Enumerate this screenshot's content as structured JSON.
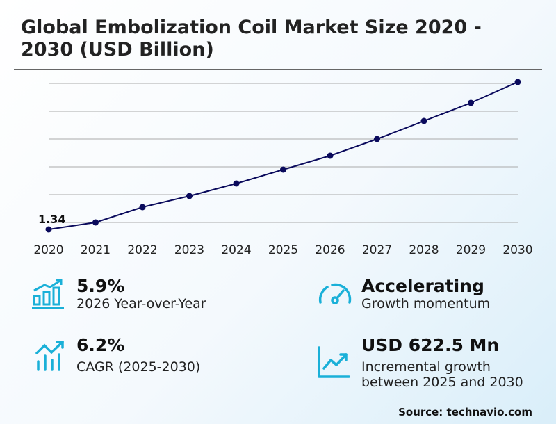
{
  "title": "Global Embolization Coil Market Size 2020 - 2030 (USD Billion)",
  "chart_data": {
    "type": "line",
    "title": "Global Embolization Coil Market Size 2020 - 2030 (USD Billion)",
    "categories": [
      "2020",
      "2021",
      "2022",
      "2023",
      "2024",
      "2025",
      "2026",
      "2027",
      "2028",
      "2029",
      "2030"
    ],
    "values": [
      1.34,
      1.39,
      1.5,
      1.58,
      1.67,
      1.77,
      1.87,
      1.99,
      2.12,
      2.25,
      2.4
    ],
    "data_labels": [
      {
        "index": 0,
        "text": "1.34"
      }
    ],
    "ylim": [
      1.39,
      2.39
    ],
    "grid": true,
    "line_color": "#0a0a5c"
  },
  "kpis": [
    {
      "value": "5.9%",
      "label": "2026 Year-over-Year",
      "icon": "bar-chart-up-icon"
    },
    {
      "value": "Accelerating",
      "label": "Growth momentum",
      "icon": "gauge-icon"
    },
    {
      "value": "6.2%",
      "label": "CAGR (2025-2030)",
      "icon": "trend-bars-icon"
    },
    {
      "value": "USD 622.5 Mn",
      "label": "Incremental growth between 2025 and 2030",
      "icon": "line-chart-icon"
    }
  ],
  "accent_color": "#1ab0d8",
  "source": "Source: technavio.com"
}
